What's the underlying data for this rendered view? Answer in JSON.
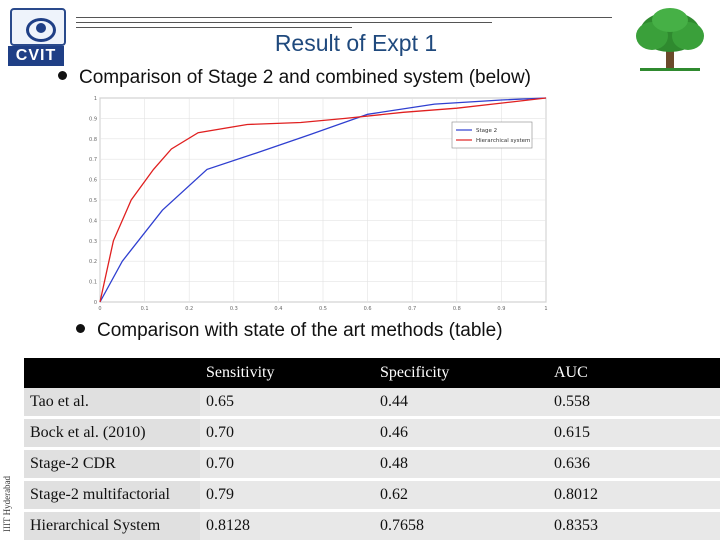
{
  "header": {
    "title": "Result of Expt 1",
    "logo_text": "CVIT"
  },
  "bullets": {
    "first": "Comparison of Stage 2 and combined system (below)",
    "second": "Comparison with state of the art methods (table)"
  },
  "side_text": "IIIT Hyderabad",
  "chart_data": {
    "type": "line",
    "legend": [
      "Stage 2",
      "Hierarchical system"
    ],
    "legend_position": "top-right",
    "x_ticks": [
      "0",
      "0.1",
      "0.2",
      "0.3",
      "0.4",
      "0.5",
      "0.6",
      "0.7",
      "0.8",
      "0.9",
      "1"
    ],
    "y_ticks": [
      "0",
      "0.1",
      "0.2",
      "0.3",
      "0.4",
      "0.5",
      "0.6",
      "0.7",
      "0.8",
      "0.9",
      "1"
    ],
    "xlim": [
      0,
      1
    ],
    "ylim": [
      0,
      1
    ],
    "grid": true,
    "series": [
      {
        "name": "Stage 2",
        "color": "#2f3fd0",
        "x": [
          0,
          0.05,
          0.14,
          0.24,
          0.35,
          0.47,
          0.6,
          0.75,
          0.9,
          1.0
        ],
        "y": [
          0,
          0.2,
          0.45,
          0.65,
          0.73,
          0.82,
          0.92,
          0.97,
          0.99,
          1.0
        ]
      },
      {
        "name": "Hierarchical system",
        "color": "#e02020",
        "x": [
          0,
          0.03,
          0.07,
          0.12,
          0.16,
          0.22,
          0.33,
          0.45,
          0.55,
          0.68,
          0.8,
          0.92,
          1.0
        ],
        "y": [
          0,
          0.3,
          0.5,
          0.65,
          0.75,
          0.83,
          0.87,
          0.88,
          0.9,
          0.93,
          0.95,
          0.98,
          1.0
        ]
      }
    ]
  },
  "table": {
    "headers": [
      "",
      "Sensitivity",
      "Specificity",
      "AUC"
    ],
    "rows": [
      [
        "Tao et al.",
        "0.65",
        "0.44",
        "0.558"
      ],
      [
        "Bock et al. (2010)",
        "0.70",
        "0.46",
        "0.615"
      ],
      [
        "Stage-2 CDR",
        "0.70",
        "0.48",
        "0.636"
      ],
      [
        "Stage-2 multifactorial",
        "0.79",
        "0.62",
        "0.8012"
      ],
      [
        "Hierarchical System",
        "0.8128",
        "0.7658",
        "0.8353"
      ]
    ]
  }
}
